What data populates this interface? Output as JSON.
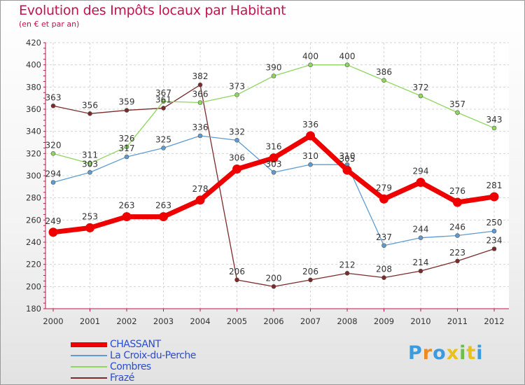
{
  "title": "Evolution des Impôts locaux par Habitant",
  "subtitle": "(en € et par an)",
  "logo": {
    "letters": [
      "P",
      "r",
      "o",
      "x",
      "i",
      "t",
      "i"
    ],
    "colors": [
      "#3a9be0",
      "#f08a1e",
      "#3a9be0",
      "#e8c21a",
      "#6cc04a",
      "#e8c21a",
      "#3a9be0"
    ]
  },
  "chart_data": {
    "type": "line",
    "x": [
      "2000",
      "2001",
      "2002",
      "2003",
      "2004",
      "2005",
      "2006",
      "2007",
      "2008",
      "2009",
      "2010",
      "2011",
      "2012"
    ],
    "ylim": [
      180,
      420
    ],
    "yticks": [
      180,
      200,
      220,
      240,
      260,
      280,
      300,
      320,
      340,
      360,
      380,
      400,
      420
    ],
    "grid": true,
    "legend_position": "bottom-left",
    "series": [
      {
        "name": "CHASSANT",
        "color": "#ee0000",
        "values": [
          249,
          253,
          263,
          263,
          278,
          306,
          316,
          336,
          305,
          279,
          294,
          276,
          281
        ],
        "width": 7,
        "r": 6.5
      },
      {
        "name": "La Croix-du-Perche",
        "color": "#5f9bd0",
        "values": [
          294,
          303,
          317,
          325,
          336,
          332,
          303,
          310,
          310,
          237,
          244,
          246,
          250
        ],
        "width": 1.3,
        "r": 3
      },
      {
        "name": "Combres",
        "color": "#8fd55f",
        "values": [
          320,
          311,
          326,
          367,
          366,
          373,
          390,
          400,
          400,
          386,
          372,
          357,
          343
        ],
        "width": 1.3,
        "r": 3
      },
      {
        "name": "Frazé",
        "color": "#7b2a2a",
        "values": [
          363,
          356,
          359,
          361,
          382,
          206,
          200,
          206,
          212,
          208,
          214,
          223,
          234
        ],
        "width": 1.3,
        "r": 3
      }
    ]
  }
}
